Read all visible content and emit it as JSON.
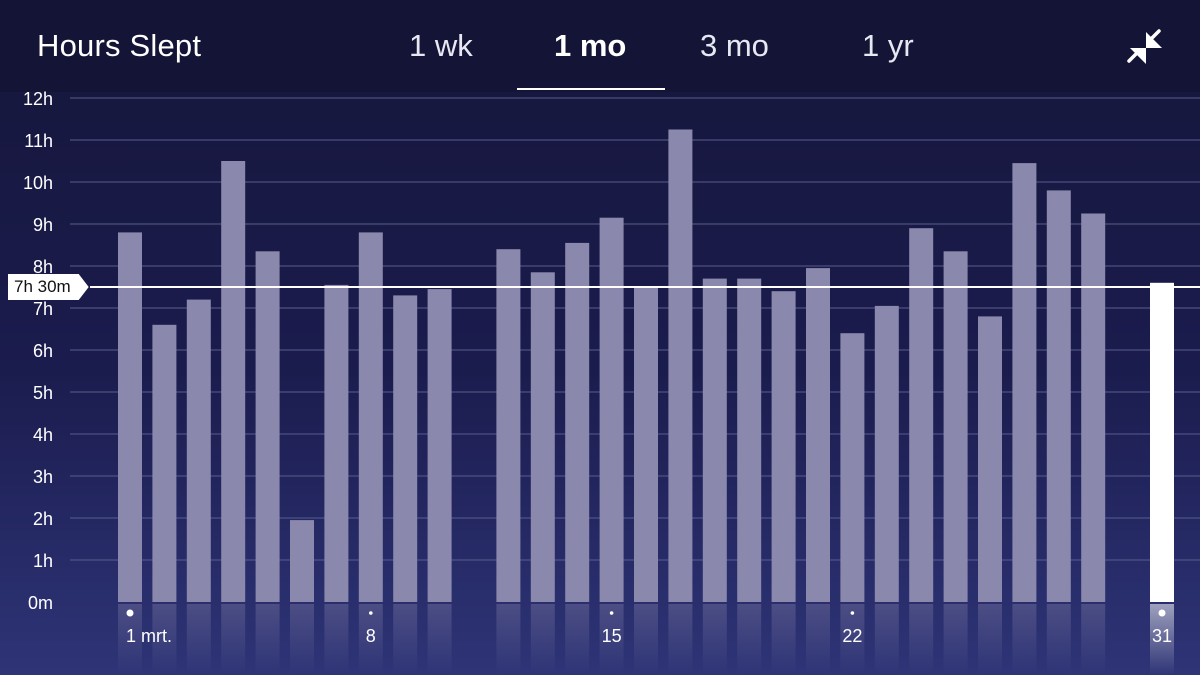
{
  "header": {
    "title": "Hours Slept",
    "tabs": [
      {
        "label": "1 wk"
      },
      {
        "label": "1 mo",
        "active": true
      },
      {
        "label": "3 mo"
      },
      {
        "label": "1 yr"
      }
    ],
    "collapse_icon": "collapse-arrows-icon"
  },
  "chart_data": {
    "type": "bar",
    "x_unit": "day of month",
    "x": [
      1,
      2,
      3,
      4,
      5,
      6,
      7,
      8,
      9,
      10,
      11,
      12,
      13,
      14,
      15,
      16,
      17,
      18,
      19,
      20,
      21,
      22,
      23,
      24,
      25,
      26,
      27,
      28,
      29,
      30,
      31
    ],
    "values": [
      8.8,
      6.6,
      7.2,
      10.5,
      8.35,
      1.95,
      7.55,
      8.8,
      7.3,
      7.45,
      null,
      8.4,
      7.85,
      8.55,
      9.15,
      7.5,
      11.25,
      7.7,
      7.7,
      7.4,
      7.95,
      6.4,
      7.05,
      8.9,
      8.35,
      6.8,
      10.45,
      9.8,
      9.25,
      null,
      7.6
    ],
    "highlighted_x": 31,
    "tick_labels": [
      {
        "x": 1,
        "label": "1 mrt."
      },
      {
        "x": 8,
        "label": "8"
      },
      {
        "x": 15,
        "label": "15"
      },
      {
        "x": 22,
        "label": "22"
      },
      {
        "x": 31,
        "label": "31"
      }
    ],
    "y_ticks": [
      "0m",
      "1h",
      "2h",
      "3h",
      "4h",
      "5h",
      "6h",
      "7h",
      "8h",
      "9h",
      "10h",
      "11h",
      "12h"
    ],
    "ylim": [
      0,
      12
    ],
    "average": {
      "value": 7.5,
      "label": "7h 30m"
    },
    "grid": true,
    "colors": {
      "bar": "#8b88ad",
      "bar_highlight": "#ffffff",
      "grid": "#5a5c8c",
      "axis_text": "#ffffff"
    }
  }
}
